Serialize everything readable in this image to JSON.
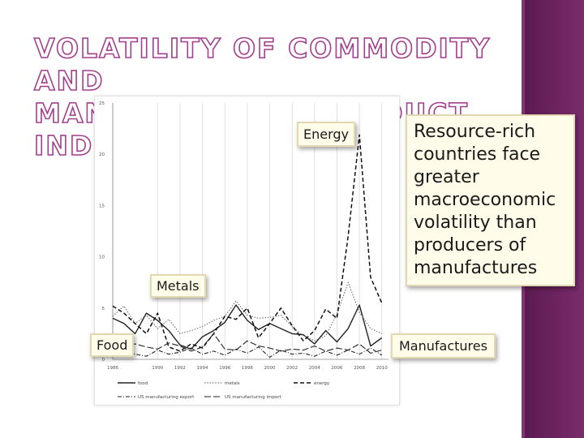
{
  "slide": {
    "title_line1": "VOLATILITY OF COMMODITY AND",
    "title_line2": "MANUFACTURED PRODUCT INDICES",
    "text_box": "Resource-rich countries face greater macroeconomic volatility than producers of manufactures",
    "accent_color": "#a33f8d",
    "band_color": "#5a1a4e"
  },
  "callouts": {
    "energy": "Energy",
    "metals": "Metals",
    "food": "Food",
    "manufactures": "Manufactures"
  },
  "chart_data": {
    "type": "line",
    "x": [
      1986,
      1987,
      1988,
      1989,
      1990,
      1991,
      1992,
      1993,
      1994,
      1995,
      1996,
      1997,
      1998,
      1999,
      2000,
      2001,
      2002,
      2003,
      2004,
      2005,
      2006,
      2007,
      2008,
      2009,
      2010
    ],
    "x_tick_labels": [
      "1986",
      "1990",
      "1992",
      "1994",
      "1996",
      "1998",
      "2000",
      "2002",
      "2004",
      "2006",
      "2008",
      "2010"
    ],
    "x_ticks": [
      1986,
      1990,
      1992,
      1994,
      1996,
      1998,
      2000,
      2002,
      2004,
      2006,
      2008,
      2010
    ],
    "y_ticks": [
      0,
      5,
      10,
      15,
      20,
      25
    ],
    "ylim": [
      0,
      25
    ],
    "xlim": [
      1986,
      2010.6
    ],
    "grid": "vertical",
    "legend_position": "bottom",
    "series": [
      {
        "name": "food",
        "style": "solid",
        "values": [
          4.0,
          3.5,
          2.5,
          4.5,
          3.8,
          2.8,
          1.4,
          1.0,
          2.2,
          2.8,
          3.6,
          5.3,
          3.8,
          2.9,
          3.5,
          3.0,
          2.5,
          2.4,
          1.5,
          2.8,
          1.7,
          3.0,
          5.3,
          1.3,
          2.1
        ]
      },
      {
        "name": "metals",
        "style": "dotted",
        "values": [
          4.2,
          5.2,
          3.5,
          4.3,
          3.0,
          3.9,
          2.5,
          2.8,
          3.2,
          3.8,
          4.2,
          5.7,
          4.3,
          4.0,
          4.1,
          4.3,
          3.2,
          2.3,
          1.8,
          2.3,
          4.4,
          7.5,
          4.6,
          3.0,
          2.5
        ]
      },
      {
        "name": "energy",
        "style": "dashed",
        "values": [
          5.2,
          4.5,
          3.5,
          2.5,
          4.5,
          1.2,
          0.8,
          1.5,
          1.1,
          2.5,
          4.2,
          3.9,
          5.0,
          2.1,
          3.5,
          5.0,
          3.3,
          1.8,
          2.8,
          4.9,
          4.0,
          12.0,
          21.9,
          8.0,
          5.5
        ]
      },
      {
        "name": "US manufacturing export",
        "style": "dash-dot",
        "values": [
          0.6,
          0.8,
          0.5,
          0.3,
          0.9,
          0.5,
          0.7,
          1.1,
          0.5,
          0.8,
          0.4,
          1.0,
          0.6,
          1.2,
          0.2,
          0.9,
          0.5,
          0.6,
          0.3,
          0.8,
          0.4,
          0.9,
          0.5,
          1.1,
          0.4
        ]
      },
      {
        "name": "US manufacturing import",
        "style": "long-dash",
        "values": [
          1.0,
          1.4,
          1.5,
          1.2,
          1.0,
          1.6,
          1.3,
          0.8,
          1.2,
          2.5,
          1.0,
          0.9,
          1.8,
          1.3,
          1.1,
          0.8,
          1.0,
          0.9,
          1.3,
          0.8,
          1.1,
          0.9,
          1.5,
          0.6,
          0.9
        ]
      }
    ]
  }
}
